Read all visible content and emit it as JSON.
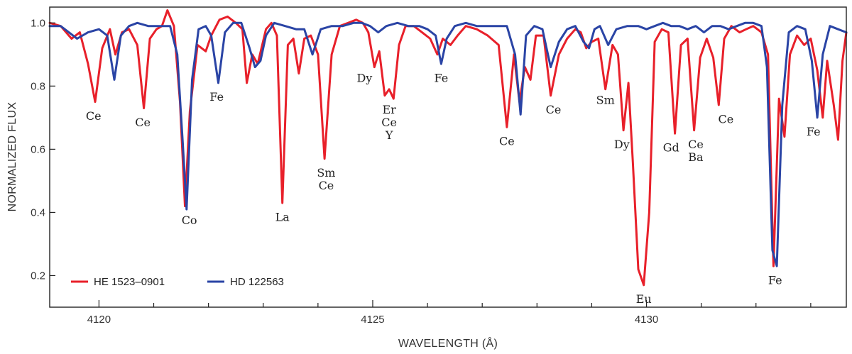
{
  "chart_data": {
    "type": "line",
    "title": "",
    "xlabel": "WAVELENGTH (Å)",
    "ylabel": "NORMALIZED FLUX",
    "xlim": [
      4119.1,
      4133.65
    ],
    "ylim": [
      0.1,
      1.05
    ],
    "x_ticks": [
      4120,
      4125,
      4130
    ],
    "x_minor_ticks": [
      4121,
      4122,
      4123,
      4124,
      4126,
      4127,
      4128,
      4129,
      4131,
      4132,
      4133
    ],
    "y_ticks": [
      0.2,
      0.4,
      0.6,
      0.8,
      1.0
    ],
    "y_tick_labels": [
      "0.2",
      "0.4",
      "0.6",
      "0.8",
      "1.0"
    ],
    "grid": false,
    "legend_position": "bottom-left",
    "series": [
      {
        "name": "HE 1523–0901",
        "color": "#e8202a",
        "points": [
          [
            4119.1,
            1.0
          ],
          [
            4119.3,
            0.99
          ],
          [
            4119.5,
            0.95
          ],
          [
            4119.65,
            0.97
          ],
          [
            4119.8,
            0.87
          ],
          [
            4119.93,
            0.75
          ],
          [
            4120.06,
            0.92
          ],
          [
            4120.2,
            0.98
          ],
          [
            4120.3,
            0.9
          ],
          [
            4120.42,
            0.97
          ],
          [
            4120.55,
            0.98
          ],
          [
            4120.7,
            0.93
          ],
          [
            4120.82,
            0.73
          ],
          [
            4120.93,
            0.95
          ],
          [
            4121.05,
            0.98
          ],
          [
            4121.15,
            0.99
          ],
          [
            4121.25,
            1.04
          ],
          [
            4121.37,
            0.99
          ],
          [
            4121.48,
            0.75
          ],
          [
            4121.57,
            0.42
          ],
          [
            4121.66,
            0.72
          ],
          [
            4121.8,
            0.93
          ],
          [
            4121.95,
            0.91
          ],
          [
            4122.05,
            0.96
          ],
          [
            4122.2,
            1.01
          ],
          [
            4122.35,
            1.02
          ],
          [
            4122.5,
            1.0
          ],
          [
            4122.62,
            0.98
          ],
          [
            4122.7,
            0.81
          ],
          [
            4122.8,
            0.9
          ],
          [
            4122.9,
            0.87
          ],
          [
            4123.05,
            0.98
          ],
          [
            4123.15,
            1.0
          ],
          [
            4123.25,
            0.96
          ],
          [
            4123.35,
            0.43
          ],
          [
            4123.45,
            0.93
          ],
          [
            4123.55,
            0.95
          ],
          [
            4123.65,
            0.84
          ],
          [
            4123.75,
            0.95
          ],
          [
            4123.87,
            0.96
          ],
          [
            4124.0,
            0.9
          ],
          [
            4124.12,
            0.57
          ],
          [
            4124.25,
            0.9
          ],
          [
            4124.4,
            0.99
          ],
          [
            4124.55,
            1.0
          ],
          [
            4124.7,
            1.01
          ],
          [
            4124.82,
            1.0
          ],
          [
            4124.92,
            0.97
          ],
          [
            4125.03,
            0.86
          ],
          [
            4125.12,
            0.91
          ],
          [
            4125.22,
            0.77
          ],
          [
            4125.3,
            0.79
          ],
          [
            4125.38,
            0.76
          ],
          [
            4125.48,
            0.93
          ],
          [
            4125.6,
            0.99
          ],
          [
            4125.75,
            0.99
          ],
          [
            4125.9,
            0.97
          ],
          [
            4126.05,
            0.95
          ],
          [
            4126.18,
            0.9
          ],
          [
            4126.28,
            0.95
          ],
          [
            4126.42,
            0.93
          ],
          [
            4126.55,
            0.96
          ],
          [
            4126.7,
            0.99
          ],
          [
            4126.9,
            0.98
          ],
          [
            4127.1,
            0.96
          ],
          [
            4127.3,
            0.93
          ],
          [
            4127.45,
            0.67
          ],
          [
            4127.58,
            0.9
          ],
          [
            4127.68,
            0.75
          ],
          [
            4127.78,
            0.86
          ],
          [
            4127.88,
            0.82
          ],
          [
            4127.98,
            0.96
          ],
          [
            4128.12,
            0.96
          ],
          [
            4128.25,
            0.77
          ],
          [
            4128.4,
            0.9
          ],
          [
            4128.55,
            0.95
          ],
          [
            4128.7,
            0.98
          ],
          [
            4128.8,
            0.97
          ],
          [
            4128.9,
            0.92
          ],
          [
            4129.0,
            0.94
          ],
          [
            4129.12,
            0.95
          ],
          [
            4129.25,
            0.79
          ],
          [
            4129.38,
            0.93
          ],
          [
            4129.48,
            0.9
          ],
          [
            4129.58,
            0.66
          ],
          [
            4129.67,
            0.81
          ],
          [
            4129.75,
            0.56
          ],
          [
            4129.85,
            0.22
          ],
          [
            4129.95,
            0.17
          ],
          [
            4130.05,
            0.4
          ],
          [
            4130.15,
            0.94
          ],
          [
            4130.28,
            0.98
          ],
          [
            4130.4,
            0.97
          ],
          [
            4130.52,
            0.65
          ],
          [
            4130.63,
            0.93
          ],
          [
            4130.75,
            0.95
          ],
          [
            4130.87,
            0.66
          ],
          [
            4130.98,
            0.89
          ],
          [
            4131.1,
            0.95
          ],
          [
            4131.22,
            0.89
          ],
          [
            4131.32,
            0.74
          ],
          [
            4131.42,
            0.95
          ],
          [
            4131.55,
            0.99
          ],
          [
            4131.7,
            0.97
          ],
          [
            4131.82,
            0.98
          ],
          [
            4131.95,
            0.99
          ],
          [
            4132.1,
            0.97
          ],
          [
            4132.22,
            0.9
          ],
          [
            4132.32,
            0.23
          ],
          [
            4132.42,
            0.76
          ],
          [
            4132.52,
            0.64
          ],
          [
            4132.62,
            0.9
          ],
          [
            4132.75,
            0.96
          ],
          [
            4132.88,
            0.93
          ],
          [
            4133.0,
            0.95
          ],
          [
            4133.12,
            0.85
          ],
          [
            4133.22,
            0.7
          ],
          [
            4133.3,
            0.88
          ],
          [
            4133.42,
            0.74
          ],
          [
            4133.5,
            0.63
          ],
          [
            4133.58,
            0.88
          ],
          [
            4133.65,
            0.97
          ]
        ]
      },
      {
        "name": "HD 122563",
        "color": "#2a44a5",
        "points": [
          [
            4119.1,
            0.99
          ],
          [
            4119.3,
            0.99
          ],
          [
            4119.45,
            0.97
          ],
          [
            4119.6,
            0.95
          ],
          [
            4119.8,
            0.97
          ],
          [
            4120.0,
            0.98
          ],
          [
            4120.15,
            0.96
          ],
          [
            4120.28,
            0.82
          ],
          [
            4120.4,
            0.96
          ],
          [
            4120.55,
            0.99
          ],
          [
            4120.7,
            1.0
          ],
          [
            4120.9,
            0.99
          ],
          [
            4121.1,
            0.99
          ],
          [
            4121.3,
            0.99
          ],
          [
            4121.43,
            0.9
          ],
          [
            4121.53,
            0.62
          ],
          [
            4121.6,
            0.41
          ],
          [
            4121.7,
            0.82
          ],
          [
            4121.82,
            0.98
          ],
          [
            4121.95,
            0.99
          ],
          [
            4122.05,
            0.96
          ],
          [
            4122.18,
            0.81
          ],
          [
            4122.3,
            0.97
          ],
          [
            4122.45,
            1.0
          ],
          [
            4122.6,
            1.0
          ],
          [
            4122.75,
            0.92
          ],
          [
            4122.85,
            0.86
          ],
          [
            4122.95,
            0.88
          ],
          [
            4123.05,
            0.96
          ],
          [
            4123.2,
            1.0
          ],
          [
            4123.4,
            0.99
          ],
          [
            4123.6,
            0.98
          ],
          [
            4123.75,
            0.98
          ],
          [
            4123.9,
            0.9
          ],
          [
            4124.05,
            0.98
          ],
          [
            4124.25,
            0.99
          ],
          [
            4124.45,
            0.99
          ],
          [
            4124.65,
            1.0
          ],
          [
            4124.8,
            1.0
          ],
          [
            4124.95,
            0.99
          ],
          [
            4125.1,
            0.97
          ],
          [
            4125.25,
            0.99
          ],
          [
            4125.45,
            1.0
          ],
          [
            4125.65,
            0.99
          ],
          [
            4125.85,
            0.99
          ],
          [
            4126.0,
            0.98
          ],
          [
            4126.15,
            0.96
          ],
          [
            4126.25,
            0.87
          ],
          [
            4126.35,
            0.95
          ],
          [
            4126.5,
            0.99
          ],
          [
            4126.7,
            1.0
          ],
          [
            4126.9,
            0.99
          ],
          [
            4127.1,
            0.99
          ],
          [
            4127.3,
            0.99
          ],
          [
            4127.45,
            0.99
          ],
          [
            4127.6,
            0.9
          ],
          [
            4127.7,
            0.71
          ],
          [
            4127.8,
            0.96
          ],
          [
            4127.95,
            0.99
          ],
          [
            4128.1,
            0.98
          ],
          [
            4128.25,
            0.86
          ],
          [
            4128.4,
            0.94
          ],
          [
            4128.55,
            0.98
          ],
          [
            4128.7,
            0.99
          ],
          [
            4128.85,
            0.94
          ],
          [
            4128.95,
            0.92
          ],
          [
            4129.05,
            0.98
          ],
          [
            4129.15,
            0.99
          ],
          [
            4129.3,
            0.93
          ],
          [
            4129.45,
            0.98
          ],
          [
            4129.65,
            0.99
          ],
          [
            4129.85,
            0.99
          ],
          [
            4130.0,
            0.98
          ],
          [
            4130.15,
            0.99
          ],
          [
            4130.3,
            1.0
          ],
          [
            4130.45,
            0.99
          ],
          [
            4130.6,
            0.99
          ],
          [
            4130.75,
            0.98
          ],
          [
            4130.9,
            0.99
          ],
          [
            4131.05,
            0.97
          ],
          [
            4131.2,
            0.99
          ],
          [
            4131.35,
            0.99
          ],
          [
            4131.5,
            0.98
          ],
          [
            4131.65,
            0.99
          ],
          [
            4131.8,
            1.0
          ],
          [
            4131.95,
            1.0
          ],
          [
            4132.1,
            0.99
          ],
          [
            4132.2,
            0.86
          ],
          [
            4132.3,
            0.28
          ],
          [
            4132.38,
            0.23
          ],
          [
            4132.48,
            0.74
          ],
          [
            4132.6,
            0.97
          ],
          [
            4132.75,
            0.99
          ],
          [
            4132.9,
            0.98
          ],
          [
            4133.02,
            0.88
          ],
          [
            4133.12,
            0.7
          ],
          [
            4133.22,
            0.9
          ],
          [
            4133.35,
            0.99
          ],
          [
            4133.5,
            0.98
          ],
          [
            4133.65,
            0.97
          ]
        ]
      }
    ],
    "annotations": [
      {
        "lines": [
          "Ce"
        ],
        "x": 4119.9,
        "y": 0.72
      },
      {
        "lines": [
          "Ce"
        ],
        "x": 4120.8,
        "y": 0.7
      },
      {
        "lines": [
          "Co"
        ],
        "x": 4121.65,
        "y": 0.39
      },
      {
        "lines": [
          "Fe"
        ],
        "x": 4122.15,
        "y": 0.78
      },
      {
        "lines": [
          "La"
        ],
        "x": 4123.35,
        "y": 0.4
      },
      {
        "lines": [
          "Sm",
          "Ce"
        ],
        "x": 4124.15,
        "y": 0.54
      },
      {
        "lines": [
          "Dy"
        ],
        "x": 4124.85,
        "y": 0.84
      },
      {
        "lines": [
          "Er",
          "Ce",
          "Y"
        ],
        "x": 4125.3,
        "y": 0.74
      },
      {
        "lines": [
          "Fe"
        ],
        "x": 4126.25,
        "y": 0.84
      },
      {
        "lines": [
          "Ce"
        ],
        "x": 4127.45,
        "y": 0.64
      },
      {
        "lines": [
          "Ce"
        ],
        "x": 4128.3,
        "y": 0.74
      },
      {
        "lines": [
          "Sm"
        ],
        "x": 4129.25,
        "y": 0.77
      },
      {
        "lines": [
          "Dy"
        ],
        "x": 4129.55,
        "y": 0.63
      },
      {
        "lines": [
          "Eu"
        ],
        "x": 4129.95,
        "y": 0.14
      },
      {
        "lines": [
          "Gd"
        ],
        "x": 4130.45,
        "y": 0.62
      },
      {
        "lines": [
          "Ce",
          "Ba"
        ],
        "x": 4130.9,
        "y": 0.63
      },
      {
        "lines": [
          "Ce"
        ],
        "x": 4131.45,
        "y": 0.71
      },
      {
        "lines": [
          "Fe"
        ],
        "x": 4132.35,
        "y": 0.2
      },
      {
        "lines": [
          "Fe"
        ],
        "x": 4133.05,
        "y": 0.67
      }
    ]
  }
}
